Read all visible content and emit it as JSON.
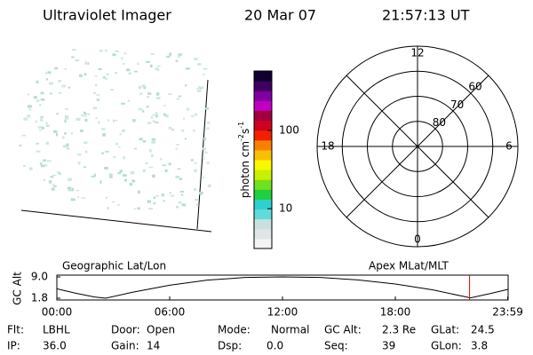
{
  "header": {
    "title": "Ultraviolet Imager",
    "date": "20 Mar 07",
    "time": "21:57:13 UT"
  },
  "colorbar": {
    "label": [
      "photon cm",
      "-2",
      "s",
      "-1"
    ],
    "log": true,
    "lim": [
      3.1,
      575
    ],
    "ticks": [
      10,
      100
    ],
    "colors": [
      "#f4f4f4",
      "#dfe6e6",
      "#c8e0e0",
      "#60dcd8",
      "#30d0d0",
      "#20d040",
      "#70e020",
      "#c8f000",
      "#f8f800",
      "#f8c000",
      "#f88000",
      "#f02000",
      "#d00020",
      "#a00040",
      "#c000c0",
      "#8000a0",
      "#400060",
      "#100030"
    ]
  },
  "polar": {
    "lat_min": 50,
    "lat_labels": [
      60,
      70,
      80
    ],
    "mlt_labels": [
      "0",
      "6",
      "12",
      "18"
    ],
    "mlt_hours": [
      0,
      6,
      12,
      18
    ]
  },
  "altitude_plot": {
    "type": "line",
    "ylabel": "GC Alt",
    "left_label": "Geographic Lat/Lon",
    "right_label": "Apex MLat/MLT",
    "x": [
      0,
      1,
      2,
      2.6,
      4,
      6,
      8,
      10,
      12,
      14,
      16,
      18,
      20,
      22,
      23,
      24
    ],
    "values": [
      5.0,
      3.5,
      2.2,
      1.8,
      3.8,
      6.2,
      7.9,
      8.8,
      9.0,
      8.8,
      8.0,
      6.6,
      4.6,
      1.9,
      3.3,
      4.8
    ],
    "color": "#000000",
    "marker_x": 21.95,
    "marker_color": "#e00000",
    "xlim": [
      0,
      24
    ],
    "ylim": [
      1.8,
      9.0
    ],
    "xticks": [
      {
        "value": 0,
        "label": "00:00"
      },
      {
        "value": 6,
        "label": "06:00"
      },
      {
        "value": 12,
        "label": "12:00"
      },
      {
        "value": 18,
        "label": "18:00"
      },
      {
        "value": 23.98,
        "label": "23:59"
      }
    ],
    "yticks": [
      {
        "value": 9.0,
        "label": "9.0"
      },
      {
        "value": 1.8,
        "label": "1.8"
      }
    ]
  },
  "info": [
    [
      [
        "Flt:",
        "LBHL"
      ],
      [
        "Door:",
        "Open"
      ],
      [
        "Mode:",
        "Normal"
      ],
      [
        "GC Alt:",
        "2.3 Re"
      ],
      [
        "GLat:",
        "24.5"
      ]
    ],
    [
      [
        "IP:",
        "36.0"
      ],
      [
        "Gain:",
        "14"
      ],
      [
        "Dsp:",
        "0.0"
      ],
      [
        "Seq:",
        "39"
      ],
      [
        "GLon:",
        "3.8"
      ]
    ]
  ]
}
